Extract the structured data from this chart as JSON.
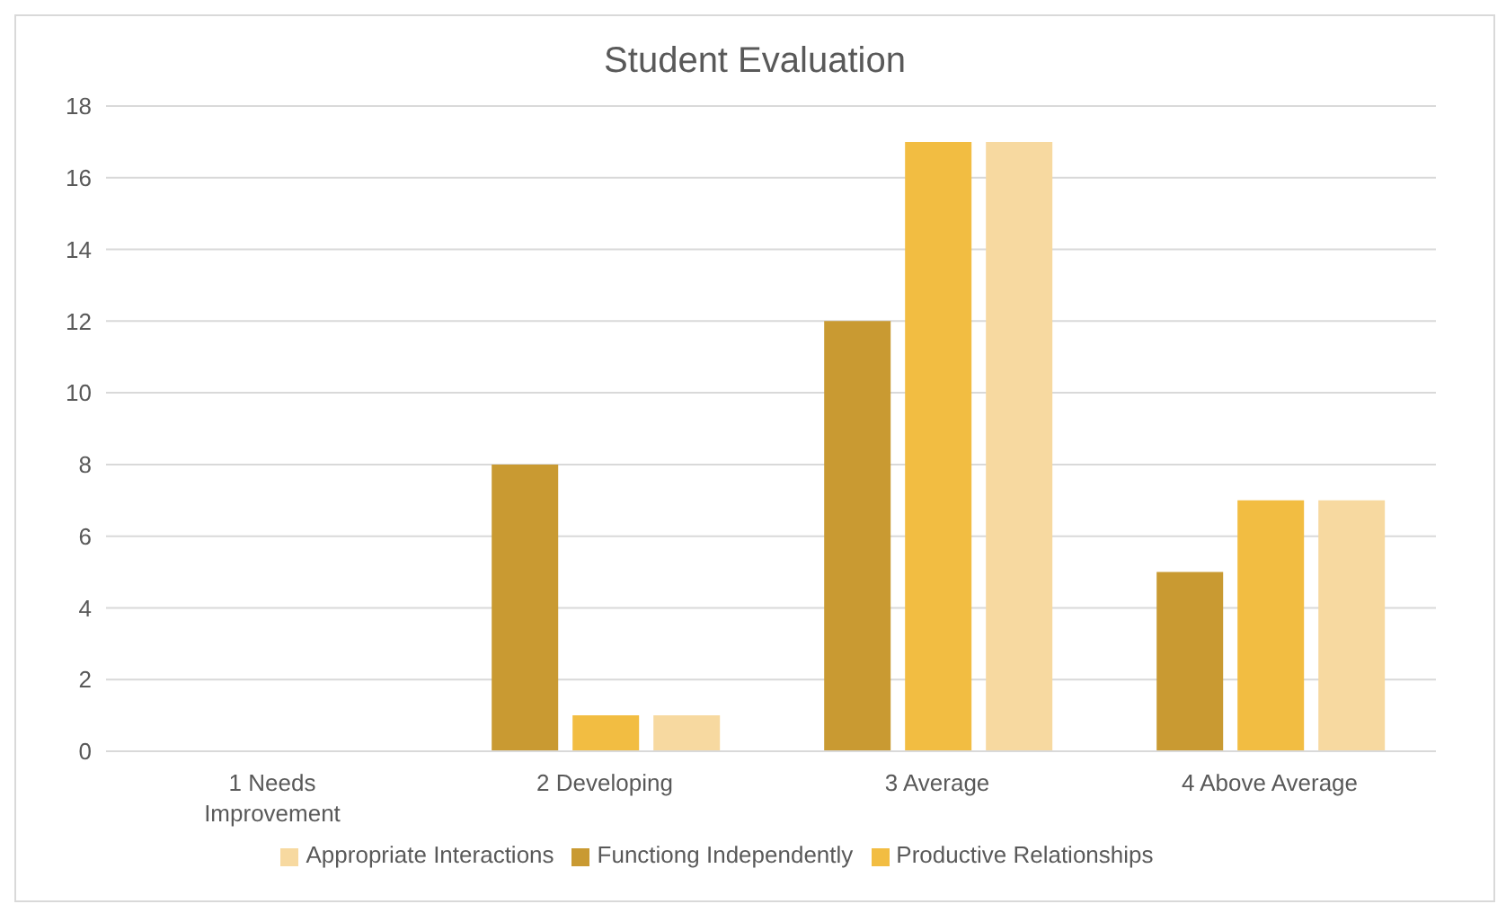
{
  "chart_data": {
    "type": "bar",
    "title": "Student Evaluation",
    "categories": [
      "1 Needs Improvement",
      "2 Developing",
      "3 Average",
      "4 Above Average"
    ],
    "series": [
      {
        "name": "Functiong Independently",
        "color": "#c99a32",
        "values": [
          0,
          8,
          12,
          5
        ]
      },
      {
        "name": "Productive Relationships",
        "color": "#f2bd42",
        "values": [
          0,
          1,
          17,
          7
        ]
      },
      {
        "name": "Appropriate Interactions",
        "color": "#f7d9a0",
        "values": [
          0,
          1,
          17,
          7
        ]
      }
    ],
    "ylim": [
      0,
      18
    ],
    "yticks": [
      0,
      2,
      4,
      6,
      8,
      10,
      12,
      14,
      16,
      18
    ],
    "grid": "y",
    "legend": "bottom"
  }
}
